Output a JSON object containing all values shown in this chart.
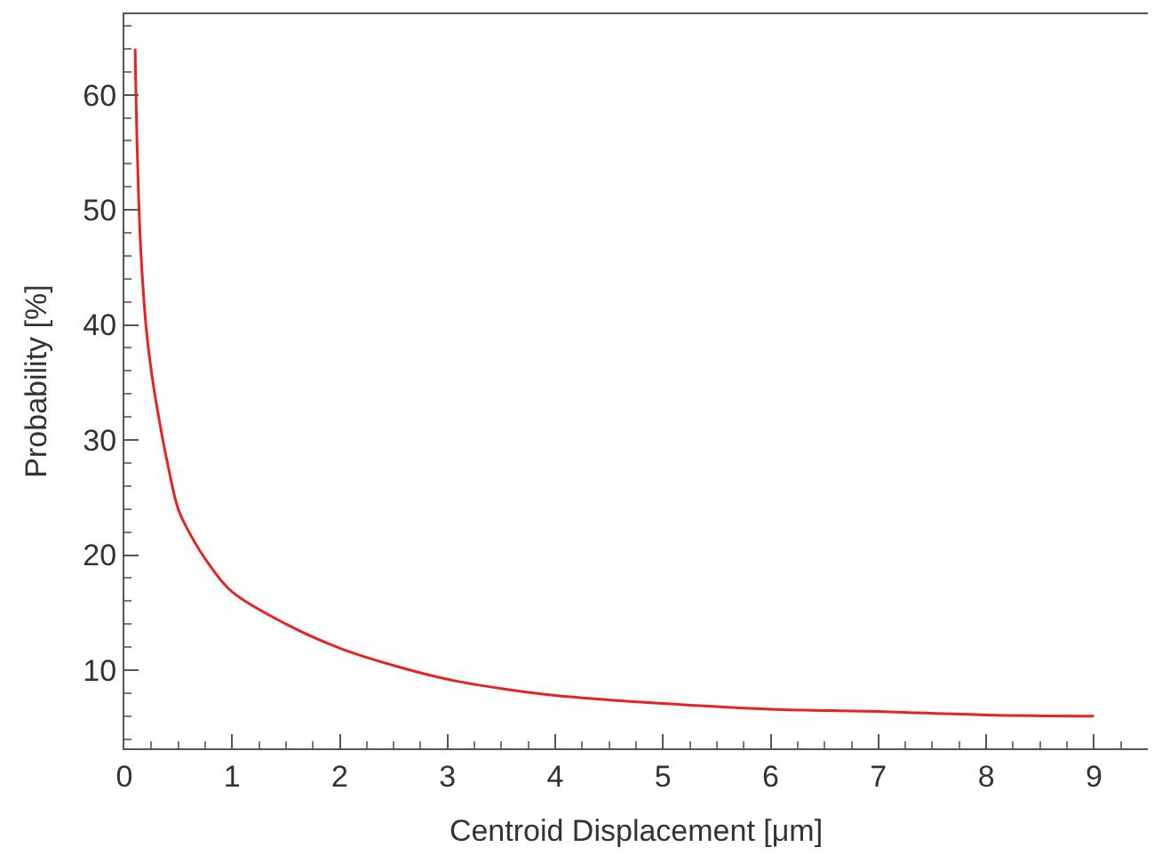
{
  "chart_data": {
    "type": "line",
    "xlabel": "Centroid Displacement [μm]",
    "ylabel": "Probability [%]",
    "x": [
      0.1,
      0.12,
      0.15,
      0.2,
      0.25,
      0.3,
      0.4,
      0.5,
      0.6,
      0.8,
      1.0,
      1.5,
      2,
      2.5,
      3,
      3.5,
      4,
      5,
      6,
      7,
      8,
      9
    ],
    "series": [
      {
        "color": "#e8231e",
        "values": [
          64,
          55,
          47,
          40,
          36,
          33,
          28,
          24,
          22,
          19,
          16.8,
          14,
          11.9,
          10.4,
          9.2,
          8.4,
          7.8,
          7.1,
          6.6,
          6.4,
          6.1,
          6.0
        ]
      }
    ],
    "xlim": [
      0,
      9.5
    ],
    "xticks": [
      0,
      1,
      2,
      3,
      4,
      5,
      6,
      7,
      8,
      9
    ],
    "ylim": [
      3.2,
      67
    ],
    "yticks": [
      10,
      20,
      30,
      40,
      50,
      60
    ],
    "marker": "none",
    "line_style": "solid"
  }
}
